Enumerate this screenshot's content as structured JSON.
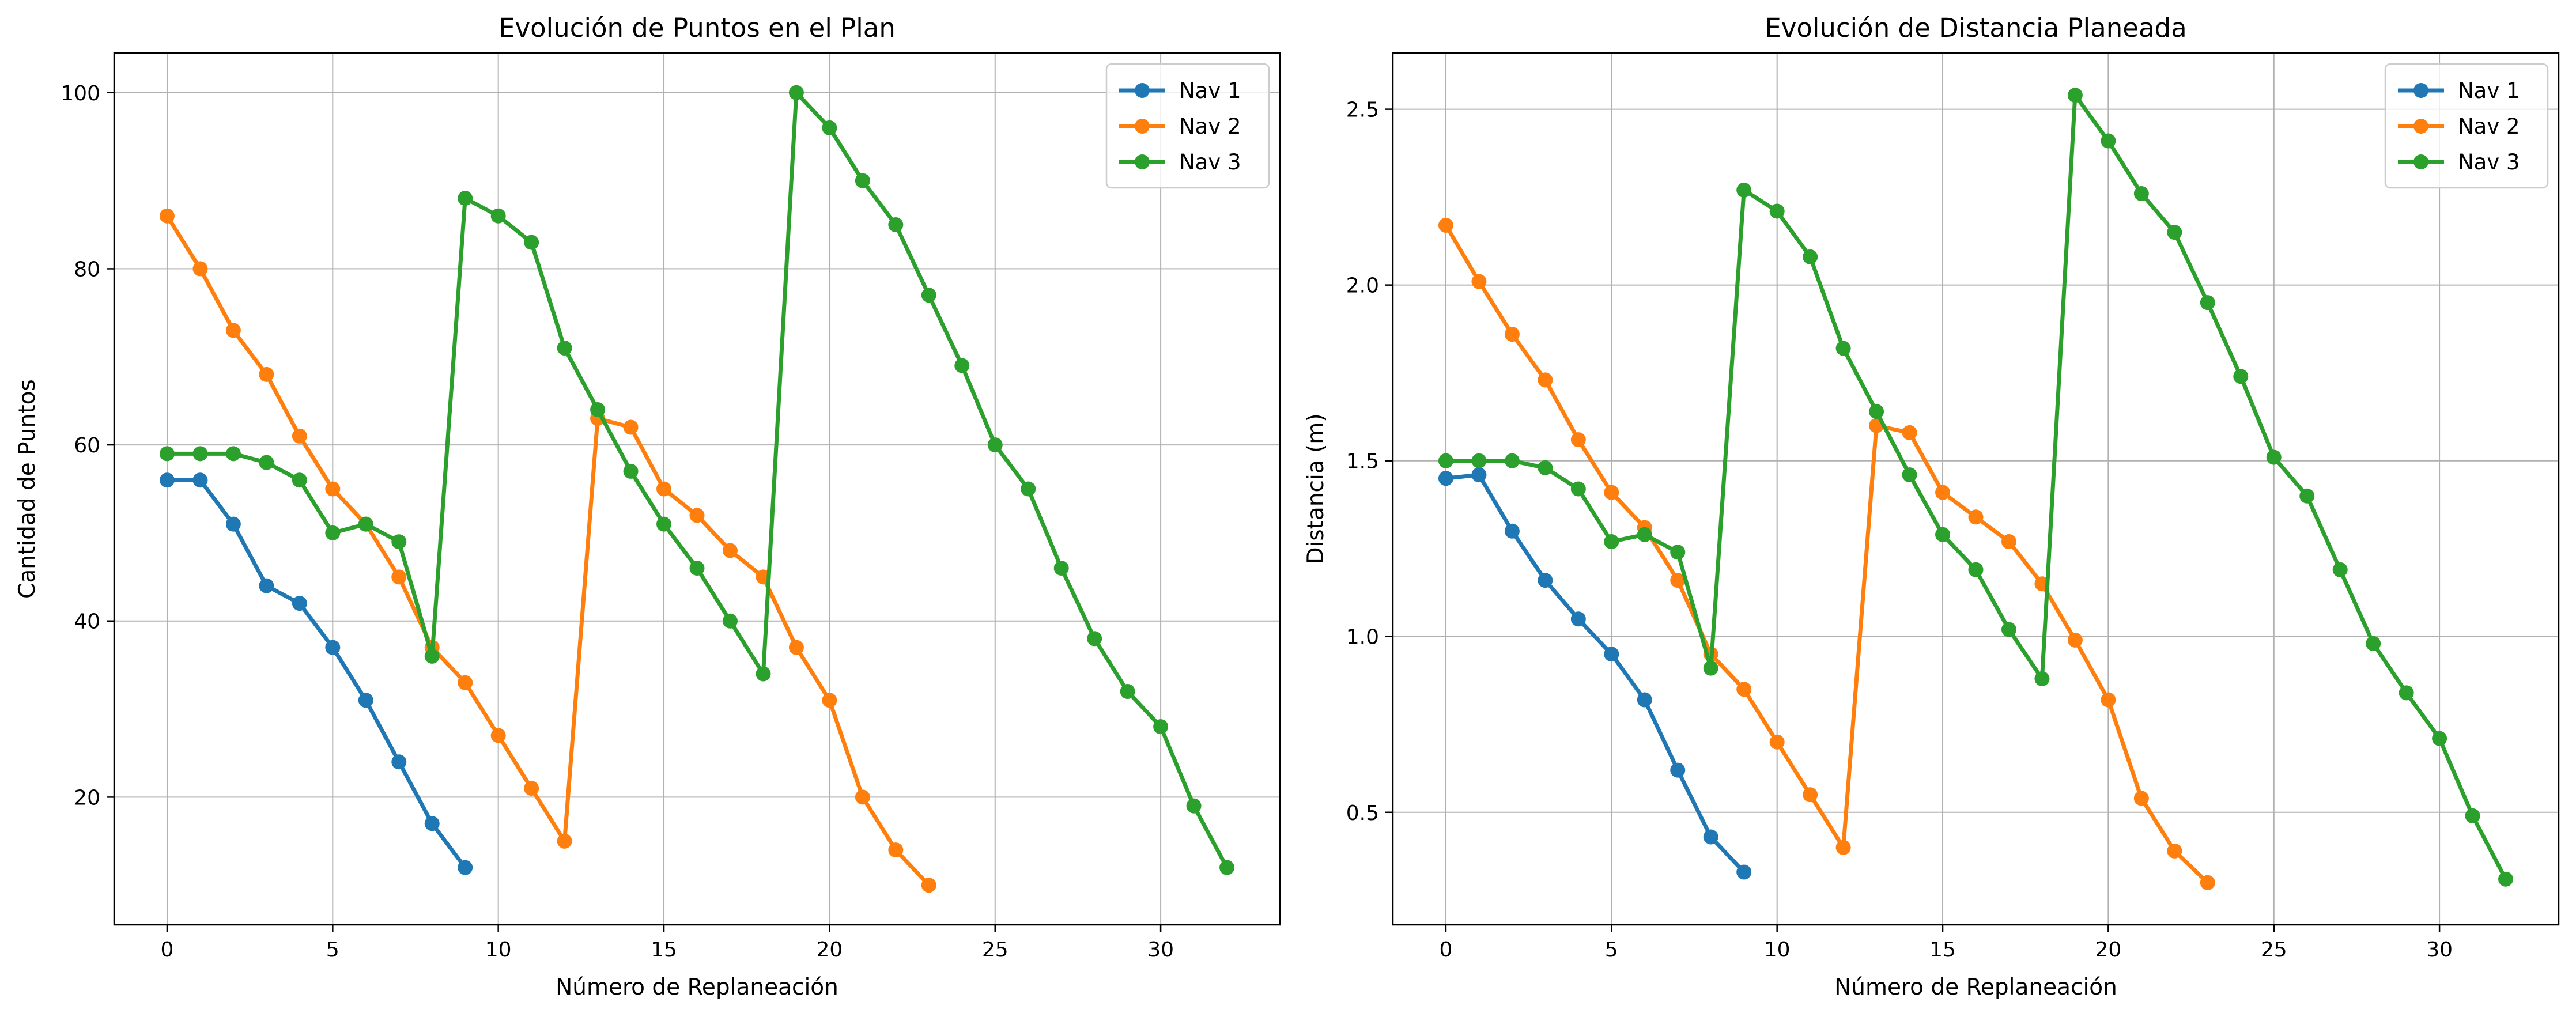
{
  "chart_data": [
    {
      "type": "line",
      "title": "Evolución de Puntos en el Plan",
      "xlabel": "Número de Replaneación",
      "ylabel": "Cantidad de Puntos",
      "xlim": [
        -1.6,
        33.6
      ],
      "ylim": [
        5.5,
        104.5
      ],
      "xticks": [
        0,
        5,
        10,
        15,
        20,
        25,
        30
      ],
      "yticks": [
        20,
        40,
        60,
        80,
        100
      ],
      "xtick_labels": [
        "0",
        "5",
        "10",
        "15",
        "20",
        "25",
        "30"
      ],
      "ytick_labels": [
        "20",
        "40",
        "60",
        "80",
        "100"
      ],
      "grid": true,
      "legend_position": "top-right",
      "series": [
        {
          "name": "Nav 1",
          "color": "#1f77b4",
          "x": [
            0,
            1,
            2,
            3,
            4,
            5,
            6,
            7,
            8,
            9
          ],
          "y": [
            56,
            56,
            51,
            44,
            42,
            37,
            31,
            24,
            17,
            12
          ]
        },
        {
          "name": "Nav 2",
          "color": "#ff7f0e",
          "x": [
            0,
            1,
            2,
            3,
            4,
            5,
            6,
            7,
            8,
            9,
            10,
            11,
            12,
            13,
            14,
            15,
            16,
            17,
            18,
            19,
            20,
            21,
            22,
            23
          ],
          "y": [
            86,
            80,
            73,
            68,
            61,
            55,
            51,
            45,
            37,
            33,
            27,
            21,
            15,
            63,
            62,
            55,
            52,
            48,
            45,
            37,
            31,
            20,
            14,
            10
          ]
        },
        {
          "name": "Nav 3",
          "color": "#2ca02c",
          "x": [
            0,
            1,
            2,
            3,
            4,
            5,
            6,
            7,
            8,
            9,
            10,
            11,
            12,
            13,
            14,
            15,
            16,
            17,
            18,
            19,
            20,
            21,
            22,
            23,
            24,
            25,
            26,
            27,
            28,
            29,
            30,
            31,
            32
          ],
          "y": [
            59,
            59,
            59,
            58,
            56,
            50,
            51,
            49,
            36,
            88,
            86,
            83,
            71,
            64,
            57,
            51,
            46,
            40,
            34,
            100,
            96,
            90,
            85,
            77,
            69,
            60,
            55,
            46,
            38,
            32,
            28,
            19,
            12
          ]
        }
      ]
    },
    {
      "type": "line",
      "title": "Evolución de Distancia Planeada",
      "xlabel": "Número de Replaneación",
      "ylabel": "Distancia (m)",
      "xlim": [
        -1.6,
        33.6
      ],
      "ylim": [
        0.18,
        2.66
      ],
      "xticks": [
        0,
        5,
        10,
        15,
        20,
        25,
        30
      ],
      "yticks": [
        0.5,
        1.0,
        1.5,
        2.0,
        2.5
      ],
      "xtick_labels": [
        "0",
        "5",
        "10",
        "15",
        "20",
        "25",
        "30"
      ],
      "ytick_labels": [
        "0.5",
        "1.0",
        "1.5",
        "2.0",
        "2.5"
      ],
      "grid": true,
      "legend_position": "top-right",
      "series": [
        {
          "name": "Nav 1",
          "color": "#1f77b4",
          "x": [
            0,
            1,
            2,
            3,
            4,
            5,
            6,
            7,
            8,
            9
          ],
          "y": [
            1.45,
            1.46,
            1.3,
            1.16,
            1.05,
            0.95,
            0.82,
            0.62,
            0.43,
            0.33
          ]
        },
        {
          "name": "Nav 2",
          "color": "#ff7f0e",
          "x": [
            0,
            1,
            2,
            3,
            4,
            5,
            6,
            7,
            8,
            9,
            10,
            11,
            12,
            13,
            14,
            15,
            16,
            17,
            18,
            19,
            20,
            21,
            22,
            23
          ],
          "y": [
            2.17,
            2.01,
            1.86,
            1.73,
            1.56,
            1.41,
            1.31,
            1.16,
            0.95,
            0.85,
            0.7,
            0.55,
            0.4,
            1.6,
            1.58,
            1.41,
            1.34,
            1.27,
            1.15,
            0.99,
            0.82,
            0.54,
            0.39,
            0.3
          ]
        },
        {
          "name": "Nav 3",
          "color": "#2ca02c",
          "x": [
            0,
            1,
            2,
            3,
            4,
            5,
            6,
            7,
            8,
            9,
            10,
            11,
            12,
            13,
            14,
            15,
            16,
            17,
            18,
            19,
            20,
            21,
            22,
            23,
            24,
            25,
            26,
            27,
            28,
            29,
            30,
            31,
            32
          ],
          "y": [
            1.5,
            1.5,
            1.5,
            1.48,
            1.42,
            1.27,
            1.29,
            1.24,
            0.91,
            2.27,
            2.21,
            2.08,
            1.82,
            1.64,
            1.46,
            1.29,
            1.19,
            1.02,
            0.88,
            2.54,
            2.41,
            2.26,
            2.15,
            1.95,
            1.74,
            1.51,
            1.4,
            1.19,
            0.98,
            0.84,
            0.71,
            0.49,
            0.31
          ]
        }
      ]
    }
  ]
}
